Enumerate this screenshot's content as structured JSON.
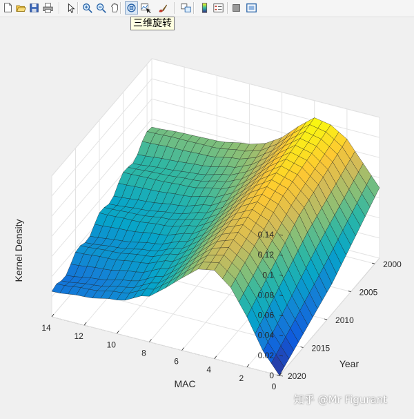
{
  "toolbar": {
    "buttons": [
      {
        "icon": "new-figure-icon"
      },
      {
        "icon": "open-file-icon"
      },
      {
        "icon": "save-figure-icon"
      },
      {
        "icon": "print-figure-icon"
      },
      {
        "icon": "edit-plot-icon"
      },
      {
        "icon": "zoom-in-icon"
      },
      {
        "icon": "zoom-out-icon"
      },
      {
        "icon": "pan-icon"
      },
      {
        "icon": "rotate-3d-icon",
        "active": true
      },
      {
        "icon": "data-cursor-icon"
      },
      {
        "icon": "brush-icon"
      },
      {
        "icon": "link-plot-icon"
      },
      {
        "icon": "colorbar-icon"
      },
      {
        "icon": "legend-icon"
      },
      {
        "icon": "hide-plot-tools-icon"
      },
      {
        "icon": "show-plot-tools-icon"
      }
    ],
    "tooltip": "三维旋转"
  },
  "watermark": "知乎 @Mr Figurant",
  "chart_data": {
    "type": "surface",
    "zlabel": "Kernel Density",
    "xlabel": "MAC",
    "ylabel": "Year",
    "x_ticks": [
      "0",
      "2",
      "4",
      "6",
      "8",
      "10",
      "12",
      "14"
    ],
    "y_ticks": [
      "2000",
      "2005",
      "2010",
      "2015",
      "2020"
    ],
    "z_ticks": [
      "0",
      "0.02",
      "0.04",
      "0.06",
      "0.08",
      "0.1",
      "0.12",
      "0.14"
    ],
    "xlim": [
      0,
      14
    ],
    "ylim": [
      1999,
      2020
    ],
    "zlim": [
      0,
      0.14
    ],
    "grid": true,
    "colormap": "parula",
    "colormap_stops": [
      "#352a87",
      "#0f5cdd",
      "#1481d6",
      "#06a4ca",
      "#2eb7a4",
      "#87bf77",
      "#d1bb59",
      "#fec832",
      "#f9fb0e"
    ],
    "mac_grid": [
      0,
      0.5,
      1,
      1.5,
      2,
      2.5,
      3,
      3.5,
      4,
      4.5,
      5,
      5.5,
      6,
      6.5,
      7,
      7.5,
      8,
      8.5,
      9,
      9.5,
      10,
      10.5,
      11,
      11.5,
      12,
      12.5,
      13,
      13.5,
      14
    ],
    "years": [
      1999,
      2000,
      2001,
      2002,
      2003,
      2004,
      2005,
      2006,
      2007,
      2008,
      2009,
      2010,
      2011,
      2012,
      2013,
      2014,
      2015,
      2016,
      2017,
      2018,
      2019,
      2020
    ],
    "density_at_year": [
      {
        "year": 1999,
        "mac": [
          0,
          1,
          2,
          3,
          4,
          5,
          6,
          7,
          8,
          10,
          12,
          14
        ],
        "density": [
          0.07,
          0.09,
          0.11,
          0.12,
          0.123,
          0.11,
          0.095,
          0.085,
          0.08,
          0.075,
          0.074,
          0.072
        ]
      },
      {
        "year": 2009,
        "mac": [
          0,
          1,
          2,
          3,
          4,
          5,
          6,
          7,
          8,
          10,
          12,
          14
        ],
        "density": [
          0.03,
          0.06,
          0.09,
          0.105,
          0.11,
          0.1,
          0.085,
          0.07,
          0.06,
          0.052,
          0.048,
          0.046
        ]
      },
      {
        "year": 2020,
        "mac": [
          0,
          1,
          2,
          3,
          4,
          5,
          6,
          7,
          8,
          10,
          12,
          14
        ],
        "density": [
          0.0,
          0.02,
          0.05,
          0.075,
          0.088,
          0.085,
          0.072,
          0.058,
          0.045,
          0.032,
          0.026,
          0.022
        ]
      }
    ]
  }
}
